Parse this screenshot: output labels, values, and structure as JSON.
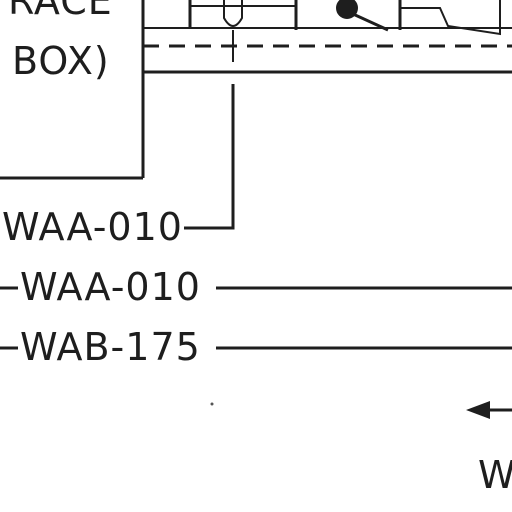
{
  "box_label": {
    "line1": "RACE",
    "line2": "BOX)"
  },
  "wires": [
    {
      "id": "wire-waa-010-upper",
      "label": "WAA-010"
    },
    {
      "id": "wire-waa-010-lower",
      "label": "WAA-010"
    },
    {
      "id": "wire-wab-175",
      "label": "WAB-175"
    }
  ],
  "arrow_label": "WA",
  "icons": {
    "arrow": "left-arrow-icon"
  }
}
